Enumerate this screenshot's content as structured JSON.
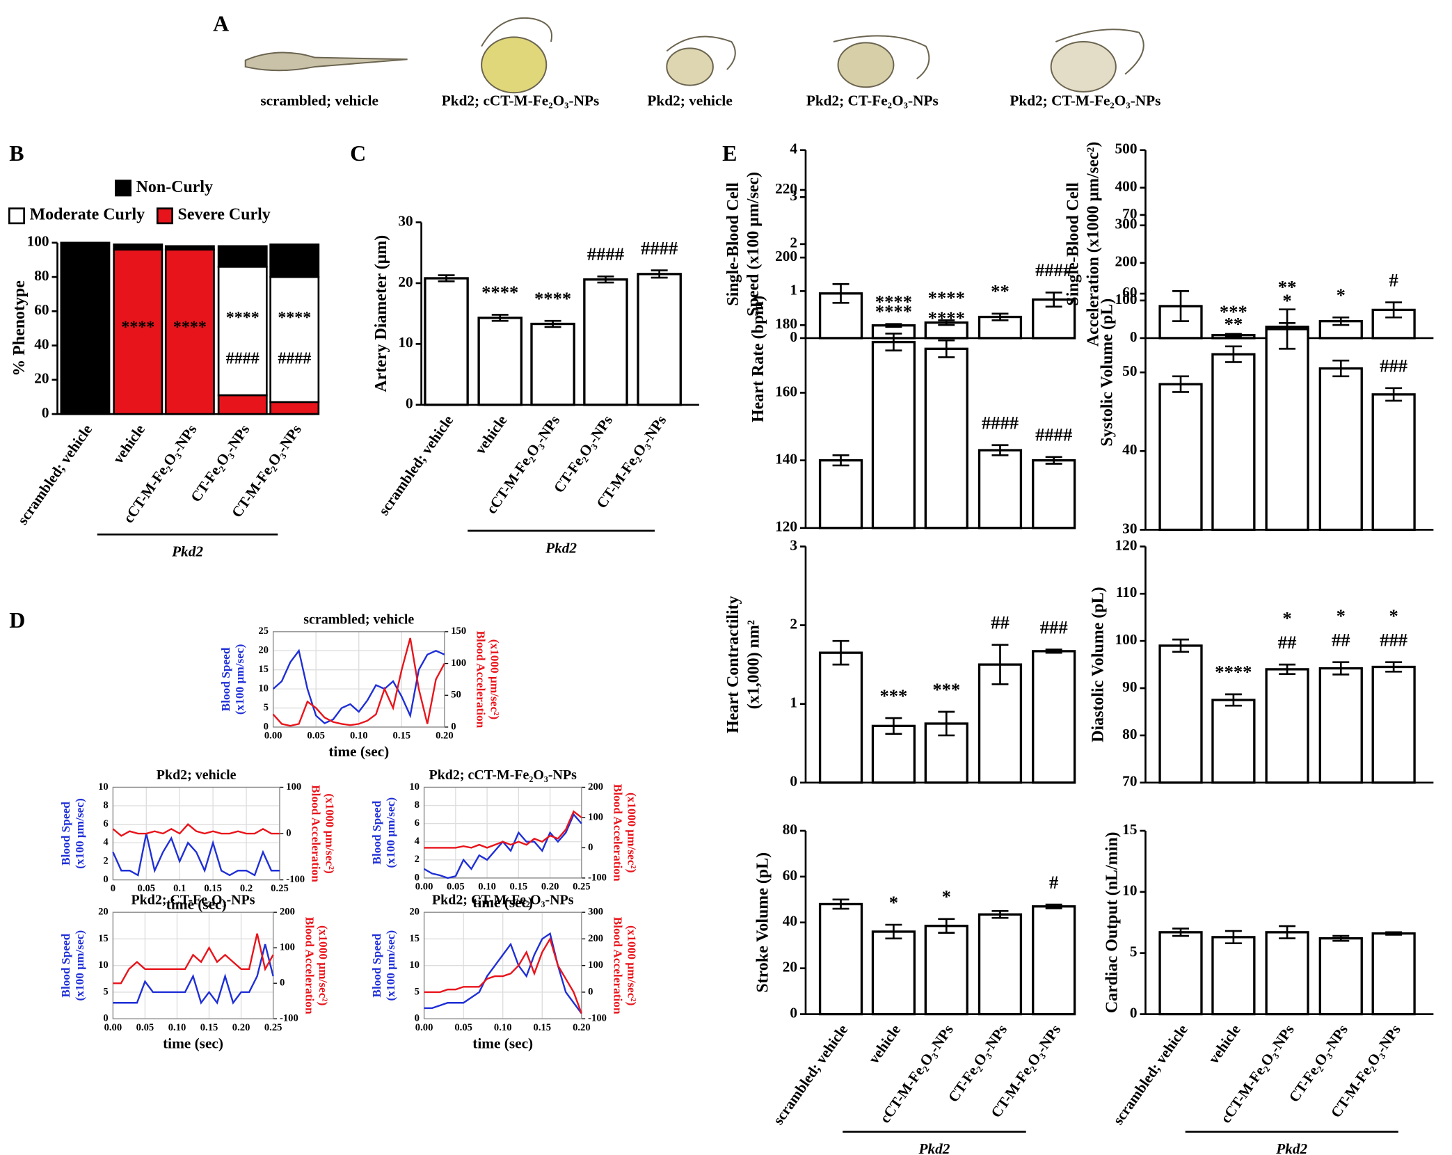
{
  "panel_a": {
    "panel": "A",
    "captions": [
      "scrambled; vehicle",
      "Pkd2; cCT-M-Fe₂O₃-NPs",
      "Pkd2; vehicle",
      "Pkd2; CT-Fe₂O₃-NPs",
      "Pkd2; CT-M-Fe₂O₃-NPs"
    ]
  },
  "chart_data": [
    {
      "type": "stacked_bar",
      "panel": "B",
      "ylabel": [
        "% Phenotype"
      ],
      "categories": [
        "scrambled; vehicle",
        "vehicle",
        "cCT-M-Fe₂O₃-NPs",
        "CT-Fe₂O₃-NPs",
        "CT-M-Fe₂O₃-NPs"
      ],
      "group": "Pkd2",
      "series": [
        {
          "name": "Severe Curly",
          "color": "#e8141b",
          "values": [
            0,
            96,
            96,
            11,
            7
          ]
        },
        {
          "name": "Moderate Curly",
          "color": "#ffffff",
          "values": [
            0,
            0,
            0,
            75,
            73
          ]
        },
        {
          "name": "Non-Curly",
          "color": "#000000",
          "values": [
            100,
            3,
            2,
            12,
            19
          ]
        }
      ],
      "annotations": [
        [],
        [
          "****"
        ],
        [
          "****"
        ],
        [
          "****",
          "####"
        ],
        [
          "****",
          "####"
        ]
      ],
      "ylim": [
        0,
        100
      ],
      "yticks": [
        0,
        20,
        40,
        60,
        80,
        100
      ]
    },
    {
      "type": "bar",
      "panel": "C",
      "ylabel": [
        "Artery Diameter (μm)"
      ],
      "categories": [
        "scrambled; vehicle",
        "vehicle",
        "cCT-M-Fe₂O₃-NPs",
        "CT-Fe₂O₃-NPs",
        "CT-M-Fe₂O₃-NPs"
      ],
      "group": "Pkd2",
      "values": [
        20.8,
        14.3,
        13.3,
        20.6,
        21.5
      ],
      "errors": [
        0.5,
        0.5,
        0.5,
        0.5,
        0.6
      ],
      "annotations": [
        [],
        [
          "****"
        ],
        [
          "****"
        ],
        [
          "####"
        ],
        [
          "####"
        ]
      ],
      "ylim": [
        0,
        30
      ],
      "yticks": [
        0,
        10,
        20,
        30
      ]
    },
    {
      "type": "bar",
      "panel": "E",
      "ylabel": [
        "Single-Blood Cell",
        "Speed (x100 μm/sec)"
      ],
      "values": [
        0.95,
        0.27,
        0.33,
        0.45,
        0.82
      ],
      "errors": [
        0.2,
        0.03,
        0.05,
        0.07,
        0.15
      ],
      "annotations": [
        [],
        [
          "****"
        ],
        [
          "****"
        ],
        [
          "**"
        ],
        [
          "####"
        ]
      ],
      "ylim": [
        0,
        4
      ],
      "yticks": [
        0,
        1,
        2,
        3,
        4
      ]
    },
    {
      "type": "bar",
      "ylabel": [
        "Single-Blood Cell",
        "Acceleration (x1000 μm/sec²)"
      ],
      "values": [
        85,
        8,
        30,
        45,
        75
      ],
      "errors": [
        40,
        3,
        10,
        10,
        20
      ],
      "annotations": [
        [],
        [
          "***"
        ],
        [
          "*"
        ],
        [
          "*"
        ],
        [
          "#"
        ]
      ],
      "ylim": [
        0,
        500
      ],
      "yticks": [
        0,
        100,
        200,
        300,
        400,
        500
      ]
    },
    {
      "type": "bar",
      "ylabel": [
        "Heart Rate (bpm)"
      ],
      "values": [
        140,
        175,
        173,
        143,
        140
      ],
      "errors": [
        1.5,
        2.5,
        2.5,
        1.5,
        1
      ],
      "annotations": [
        [],
        [
          "****"
        ],
        [
          "****"
        ],
        [
          "####"
        ],
        [
          "####"
        ]
      ],
      "ylim": [
        120,
        220
      ],
      "yticks": [
        120,
        140,
        160,
        180,
        200,
        220
      ]
    },
    {
      "type": "bar",
      "ylabel": [
        "Systolic Volume  (pL)"
      ],
      "values": [
        48.5,
        52.3,
        55.5,
        50.5,
        47.2
      ],
      "errors": [
        1,
        1,
        2.5,
        1,
        0.8
      ],
      "annotations": [
        [],
        [
          "**"
        ],
        [
          "**"
        ],
        [],
        [
          "###"
        ]
      ],
      "ylim": [
        30,
        70
      ],
      "yticks": [
        30,
        40,
        50,
        60,
        70
      ]
    },
    {
      "type": "bar",
      "ylabel": [
        "Heart Contractility",
        "(x1,000) nm²"
      ],
      "values": [
        1.65,
        0.72,
        0.75,
        1.5,
        1.67
      ],
      "errors": [
        0.15,
        0.1,
        0.15,
        0.25,
        0.02
      ],
      "annotations": [
        [],
        [
          "***"
        ],
        [
          "***"
        ],
        [
          "##"
        ],
        [
          "###"
        ]
      ],
      "ylim": [
        0,
        3
      ],
      "yticks": [
        0,
        1,
        2,
        3
      ]
    },
    {
      "type": "bar",
      "ylabel": [
        "Diastolic Volume  (pL)"
      ],
      "values": [
        99,
        87.5,
        94,
        94.2,
        94.5
      ],
      "errors": [
        1.3,
        1.2,
        1,
        1.3,
        1
      ],
      "annotations": [
        [],
        [
          "****"
        ],
        [
          "*",
          "##"
        ],
        [
          "*",
          "##"
        ],
        [
          "*",
          "###"
        ]
      ],
      "ylim": [
        70,
        120
      ],
      "yticks": [
        70,
        80,
        90,
        100,
        110,
        120
      ]
    },
    {
      "type": "bar",
      "ylabel": [
        "Stroke Volume  (pL)"
      ],
      "categories": [
        "scrambled; vehicle",
        "vehicle",
        "cCT-M-Fe₂O₃-NPs",
        "CT-Fe₂O₃-NPs",
        "CT-M-Fe₂O₃-NPs"
      ],
      "group": "Pkd2",
      "values": [
        48,
        36,
        38.5,
        43.5,
        47
      ],
      "errors": [
        2,
        3,
        3,
        1.5,
        0.8
      ],
      "annotations": [
        [],
        [
          "*"
        ],
        [
          "*"
        ],
        [],
        [
          "#"
        ]
      ],
      "ylim": [
        0,
        80
      ],
      "yticks": [
        0,
        20,
        40,
        60,
        80
      ]
    },
    {
      "type": "bar",
      "ylabel": [
        "Cardiac Output  (nL/min)"
      ],
      "categories": [
        "scrambled; vehicle",
        "vehicle",
        "cCT-M-Fe₂O₃-NPs",
        "CT-Fe₂O₃-NPs",
        "CT-M-Fe₂O₃-NPs"
      ],
      "group": "Pkd2",
      "values": [
        6.7,
        6.3,
        6.7,
        6.2,
        6.6
      ],
      "errors": [
        0.3,
        0.5,
        0.5,
        0.2,
        0.1
      ],
      "annotations": [
        [],
        [],
        [],
        [],
        []
      ],
      "ylim": [
        0,
        15
      ],
      "yticks": [
        0,
        5,
        10,
        15
      ]
    },
    {
      "type": "line",
      "panel": "D",
      "title": "scrambled; vehicle",
      "xlabel": "time (sec)",
      "ylabel": [
        "Blood Speed",
        "(x100 μm/sec)"
      ],
      "y2label": [
        "Blood Acceleration",
        "(x1000 μm/sec²)"
      ],
      "grid": true,
      "x": [
        0,
        0.01,
        0.02,
        0.03,
        0.04,
        0.05,
        0.06,
        0.07,
        0.08,
        0.09,
        0.1,
        0.11,
        0.12,
        0.13,
        0.14,
        0.15,
        0.16,
        0.17,
        0.18,
        0.19,
        0.2
      ],
      "series": [
        {
          "name": "Blood Speed",
          "color": "#1f2fd6",
          "values": [
            10,
            12,
            17,
            20,
            10,
            3,
            1,
            2,
            5,
            6,
            4,
            7,
            11,
            10,
            12,
            8,
            3,
            15,
            19,
            20,
            19
          ]
        },
        {
          "name": "Blood Acceleration",
          "color": "#e8141b",
          "axis": "y2",
          "values": [
            20,
            5,
            2,
            5,
            40,
            30,
            15,
            8,
            5,
            3,
            5,
            10,
            20,
            60,
            30,
            90,
            140,
            60,
            5,
            75,
            100
          ]
        }
      ],
      "xlim": [
        0,
        0.2
      ],
      "xticks": [
        {
          "value": 0,
          "label": "0.00"
        },
        0.05,
        {
          "value": 0.1,
          "label": "0.10"
        },
        0.15,
        {
          "value": 0.2,
          "label": "0.20"
        }
      ],
      "ylim": [
        0,
        25
      ],
      "yticks": [
        0,
        5,
        10,
        15,
        20,
        25
      ],
      "y2lim": [
        0,
        150
      ],
      "y2ticks": [
        0,
        50,
        100,
        150
      ]
    },
    {
      "type": "line",
      "title": "Pkd2; vehicle",
      "xlabel": "time (sec)",
      "ylabel": [
        "Blood Speed",
        "(x100 μm/sec)"
      ],
      "y2label": [
        "Blood Acceleration",
        "(x1000 μm/sec²)"
      ],
      "grid": true,
      "x": [
        0,
        0.0125,
        0.025,
        0.0375,
        0.05,
        0.0625,
        0.075,
        0.0875,
        0.1,
        0.1125,
        0.125,
        0.1375,
        0.15,
        0.1625,
        0.175,
        0.1875,
        0.2,
        0.2125,
        0.225,
        0.2375,
        0.25
      ],
      "series": [
        {
          "name": "Blood Speed",
          "color": "#1f2fd6",
          "values": [
            3,
            1,
            1,
            0.5,
            5,
            1,
            3,
            4.5,
            2,
            4,
            3,
            1,
            4,
            1,
            0.5,
            1,
            1,
            0.5,
            3,
            1,
            1
          ]
        },
        {
          "name": "Blood Acceleration",
          "color": "#e8141b",
          "axis": "y2",
          "values": [
            10,
            -5,
            5,
            0,
            0,
            5,
            0,
            10,
            0,
            20,
            5,
            0,
            5,
            0,
            0,
            5,
            0,
            0,
            10,
            0,
            0
          ]
        }
      ],
      "xlim": [
        0,
        0.25
      ],
      "xticks": [
        0,
        0.05,
        0.1,
        0.15,
        0.2,
        0.25
      ],
      "ylim": [
        0,
        10
      ],
      "yticks": [
        0,
        2,
        4,
        6,
        8,
        10
      ],
      "y2lim": [
        -100,
        100
      ],
      "y2ticks": [
        -100,
        0,
        100
      ]
    },
    {
      "type": "line",
      "title": "Pkd2; cCT-M-Fe₂O₃-NPs",
      "xlabel": "time (sec)",
      "ylabel": [
        "Blood Speed",
        "(x100 μm/sec)"
      ],
      "y2label": [
        "Blood Acceleration",
        "(x1000 μm/sec²)"
      ],
      "grid": true,
      "x": [
        0,
        0.0125,
        0.025,
        0.0375,
        0.05,
        0.0625,
        0.075,
        0.0875,
        0.1,
        0.1125,
        0.125,
        0.1375,
        0.15,
        0.1625,
        0.175,
        0.1875,
        0.2,
        0.2125,
        0.225,
        0.2375,
        0.25
      ],
      "series": [
        {
          "name": "Blood Speed",
          "color": "#1f2fd6",
          "values": [
            1,
            0.5,
            0.3,
            0,
            0.2,
            2,
            1,
            2.5,
            2,
            3,
            4,
            3,
            5,
            4,
            4,
            3,
            5,
            4,
            5,
            7,
            6
          ]
        },
        {
          "name": "Blood Acceleration",
          "color": "#e8141b",
          "axis": "y2",
          "values": [
            0,
            0,
            0,
            0,
            0,
            5,
            0,
            10,
            0,
            10,
            20,
            10,
            20,
            10,
            30,
            20,
            40,
            30,
            60,
            120,
            100
          ]
        }
      ],
      "xlim": [
        0,
        0.25
      ],
      "xticks": [
        {
          "value": 0,
          "label": "0.00"
        },
        0.05,
        {
          "value": 0.1,
          "label": "0.10"
        },
        0.15,
        {
          "value": 0.2,
          "label": "0.20"
        },
        0.25
      ],
      "ylim": [
        0,
        10
      ],
      "yticks": [
        0,
        2,
        4,
        6,
        8,
        10
      ],
      "y2lim": [
        -100,
        200
      ],
      "y2ticks": [
        -100,
        0,
        100,
        200
      ]
    },
    {
      "type": "line",
      "title": "Pkd2; CT-Fe₂O₃-NPs",
      "xlabel": "time (sec)",
      "ylabel": [
        "Blood Speed",
        "(x100 μm/sec)"
      ],
      "y2label": [
        "Blood Acceleration",
        "(x1000 μm/sec²)"
      ],
      "grid": true,
      "x": [
        0,
        0.0125,
        0.025,
        0.0375,
        0.05,
        0.0625,
        0.075,
        0.0875,
        0.1,
        0.1125,
        0.125,
        0.1375,
        0.15,
        0.1625,
        0.175,
        0.1875,
        0.2,
        0.2125,
        0.225,
        0.2375,
        0.25
      ],
      "series": [
        {
          "name": "Blood Speed",
          "color": "#1f2fd6",
          "values": [
            3,
            3,
            3,
            3,
            7,
            5,
            5,
            5,
            5,
            5,
            8,
            3,
            5,
            3,
            8,
            3,
            5,
            5,
            8,
            14,
            8
          ]
        },
        {
          "name": "Blood Acceleration",
          "color": "#e8141b",
          "axis": "y2",
          "values": [
            0,
            0,
            40,
            60,
            40,
            40,
            40,
            40,
            40,
            40,
            80,
            60,
            100,
            60,
            80,
            60,
            40,
            40,
            140,
            40,
            80
          ]
        }
      ],
      "xlim": [
        0,
        0.25
      ],
      "xticks": [
        {
          "value": 0,
          "label": "0.00"
        },
        0.05,
        {
          "value": 0.1,
          "label": "0.10"
        },
        0.15,
        {
          "value": 0.2,
          "label": "0.20"
        },
        0.25
      ],
      "ylim": [
        0,
        20
      ],
      "yticks": [
        0,
        5,
        10,
        15,
        20
      ],
      "y2lim": [
        -100,
        200
      ],
      "y2ticks": [
        -100,
        0,
        100,
        200
      ]
    },
    {
      "type": "line",
      "title": "Pkd2; CT-M-Fe₂O₃-NPs",
      "xlabel": "time (sec)",
      "ylabel": [
        "Blood Speed",
        "(x100 μm/sec)"
      ],
      "y2label": [
        "Blood Acceleration",
        "(x1000 μm/sec²)"
      ],
      "grid": true,
      "x": [
        0,
        0.01,
        0.02,
        0.03,
        0.04,
        0.05,
        0.06,
        0.07,
        0.08,
        0.09,
        0.1,
        0.11,
        0.12,
        0.13,
        0.14,
        0.15,
        0.16,
        0.17,
        0.18,
        0.19,
        0.2
      ],
      "series": [
        {
          "name": "Blood Speed",
          "color": "#1f2fd6",
          "values": [
            2,
            2,
            2.5,
            3,
            3,
            3,
            4,
            5,
            8,
            10,
            12,
            14,
            10,
            8,
            12,
            15,
            16,
            10,
            5,
            3,
            1
          ]
        },
        {
          "name": "Blood Acceleration",
          "color": "#e8141b",
          "axis": "y2",
          "values": [
            0,
            0,
            0,
            10,
            10,
            20,
            20,
            20,
            50,
            60,
            60,
            70,
            100,
            150,
            70,
            150,
            200,
            100,
            50,
            0,
            -80
          ]
        }
      ],
      "xlim": [
        0,
        0.2
      ],
      "xticks": [
        {
          "value": 0,
          "label": "0.00"
        },
        0.05,
        {
          "value": 0.1,
          "label": "0.10"
        },
        0.15,
        {
          "value": 0.2,
          "label": "0.20"
        }
      ],
      "ylim": [
        0,
        20
      ],
      "yticks": [
        0,
        5,
        10,
        15,
        20
      ],
      "y2lim": [
        -100,
        300
      ],
      "y2ticks": [
        -100,
        0,
        100,
        200,
        300
      ]
    }
  ]
}
